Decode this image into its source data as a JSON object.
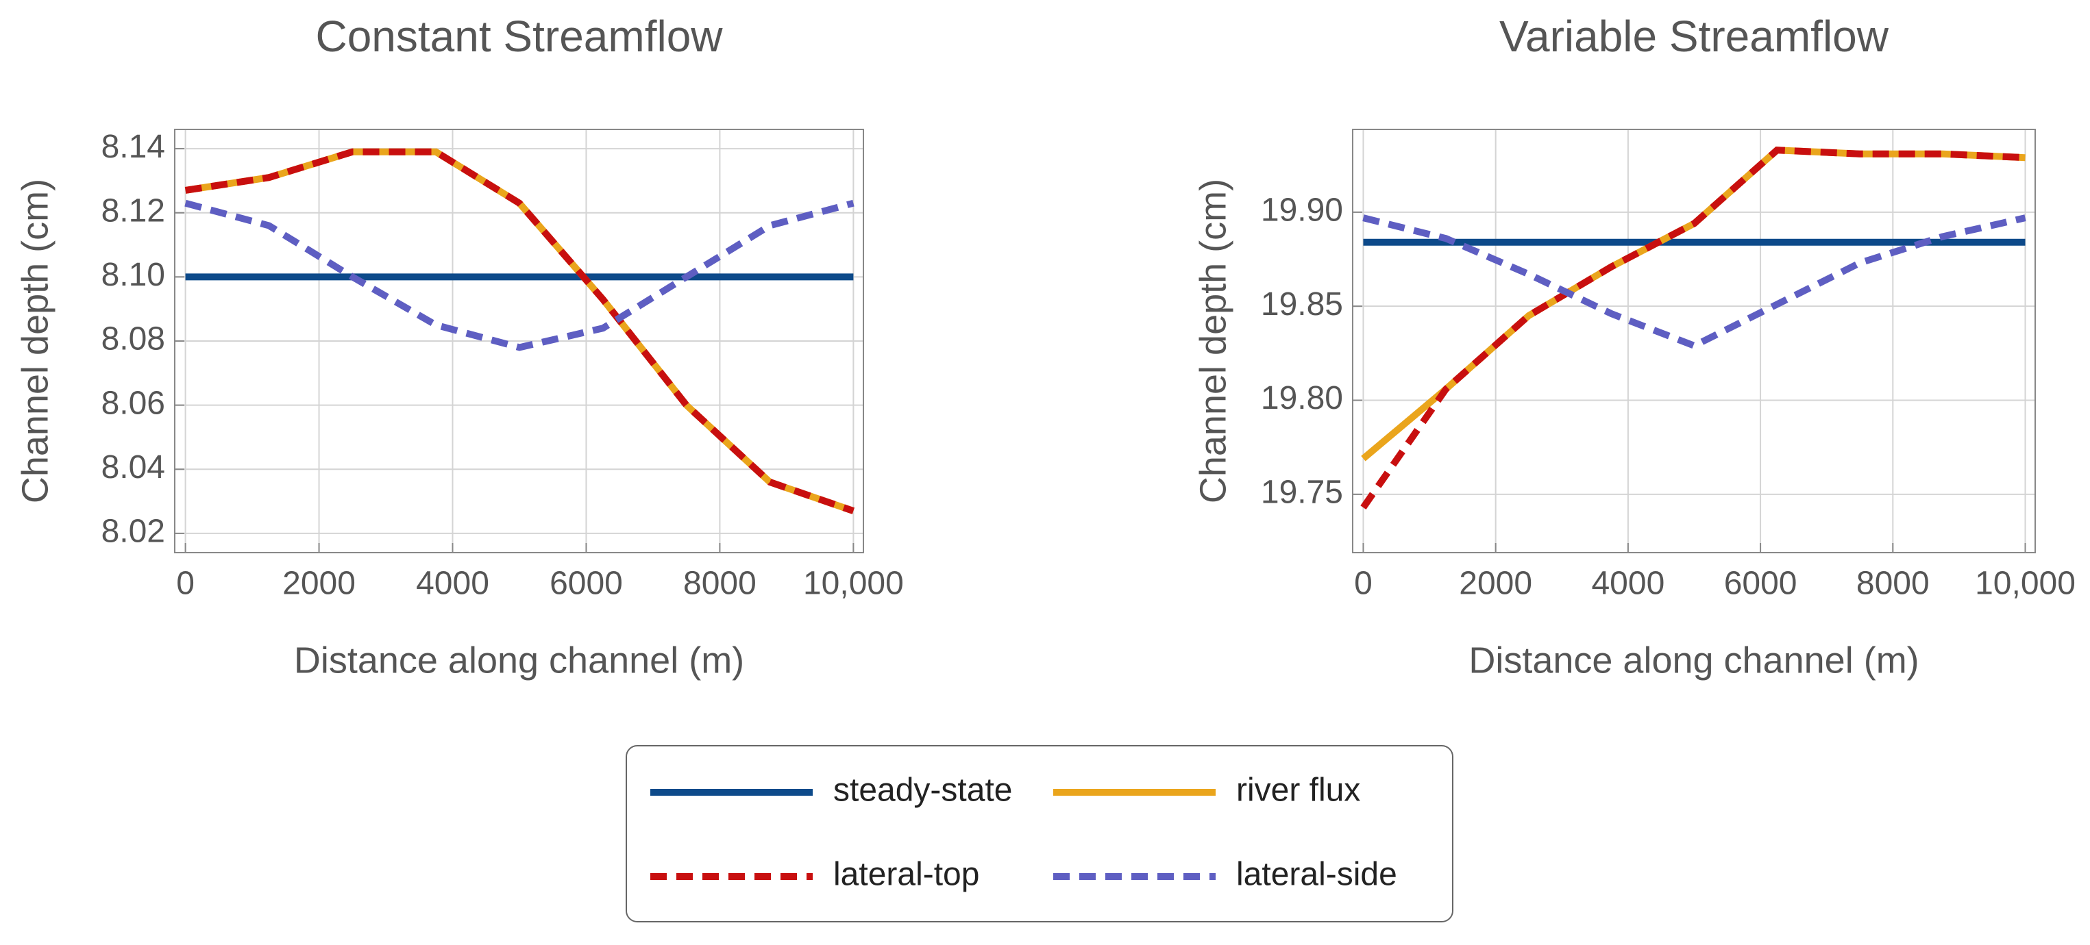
{
  "chart_data": [
    {
      "type": "line",
      "title": "Constant Streamflow",
      "xlabel": "Distance along channel (m)",
      "ylabel": "Channel depth (cm)",
      "x": [
        0,
        1250,
        2500,
        3750,
        5000,
        6250,
        7500,
        8750,
        10000
      ],
      "series": [
        {
          "name": "steady-state",
          "color": "#0d4a8a",
          "style": "solid",
          "values": [
            8.1,
            8.1,
            8.1,
            8.1,
            8.1,
            8.1,
            8.1,
            8.1,
            8.1
          ]
        },
        {
          "name": "river flux",
          "color": "#eaa51c",
          "style": "solid",
          "values": [
            8.127,
            8.131,
            8.139,
            8.139,
            8.123,
            8.093,
            8.06,
            8.036,
            8.027
          ]
        },
        {
          "name": "lateral-top",
          "color": "#c80f0f",
          "style": "dashed",
          "values": [
            8.127,
            8.131,
            8.139,
            8.139,
            8.123,
            8.093,
            8.06,
            8.036,
            8.027
          ]
        },
        {
          "name": "lateral-side",
          "color": "#5e5ec2",
          "style": "dashed",
          "values": [
            8.123,
            8.116,
            8.1,
            8.085,
            8.078,
            8.084,
            8.1,
            8.116,
            8.123
          ]
        }
      ],
      "xlim": [
        -160,
        10150
      ],
      "ylim": [
        8.014,
        8.146
      ],
      "xticks": [
        0,
        2000,
        4000,
        6000,
        8000,
        {
          "value": 10000,
          "label": "10,000"
        }
      ],
      "yticks": [
        8.02,
        8.04,
        8.06,
        8.08,
        {
          "value": 8.1,
          "label": "8.10"
        },
        8.12,
        8.14
      ],
      "grid": true
    },
    {
      "type": "line",
      "title": "Variable Streamflow",
      "xlabel": "Distance along channel (m)",
      "ylabel": "Channel depth (cm)",
      "x": [
        0,
        1250,
        2500,
        3750,
        5000,
        6250,
        7500,
        8750,
        10000
      ],
      "series": [
        {
          "color": "#0d4a8a",
          "style": "solid",
          "values": [
            19.884,
            19.884,
            19.884,
            19.884,
            19.884,
            19.884,
            19.884,
            19.884,
            19.884
          ]
        },
        {
          "color": "#eaa51c",
          "style": "solid",
          "values": [
            19.769,
            19.806,
            19.845,
            19.871,
            19.894,
            19.933,
            19.931,
            19.931,
            19.929
          ]
        },
        {
          "color": "#c80f0f",
          "style": "dashed",
          "values": [
            19.743,
            19.806,
            19.845,
            19.871,
            19.894,
            19.933,
            19.931,
            19.931,
            19.929
          ]
        },
        {
          "color": "#5e5ec2",
          "style": "dashed",
          "values": [
            19.897,
            19.886,
            19.867,
            19.846,
            19.829,
            19.851,
            19.873,
            19.887,
            19.897
          ]
        }
      ],
      "xlim": [
        -160,
        10150
      ],
      "ylim": [
        19.719,
        19.944
      ],
      "xticks": [
        0,
        2000,
        4000,
        6000,
        8000,
        {
          "value": 10000,
          "label": "10,000"
        }
      ],
      "yticks": [
        19.75,
        {
          "value": 19.8,
          "label": "19.80"
        },
        19.85,
        {
          "value": 19.9,
          "label": "19.90"
        }
      ],
      "grid": true
    }
  ]
}
